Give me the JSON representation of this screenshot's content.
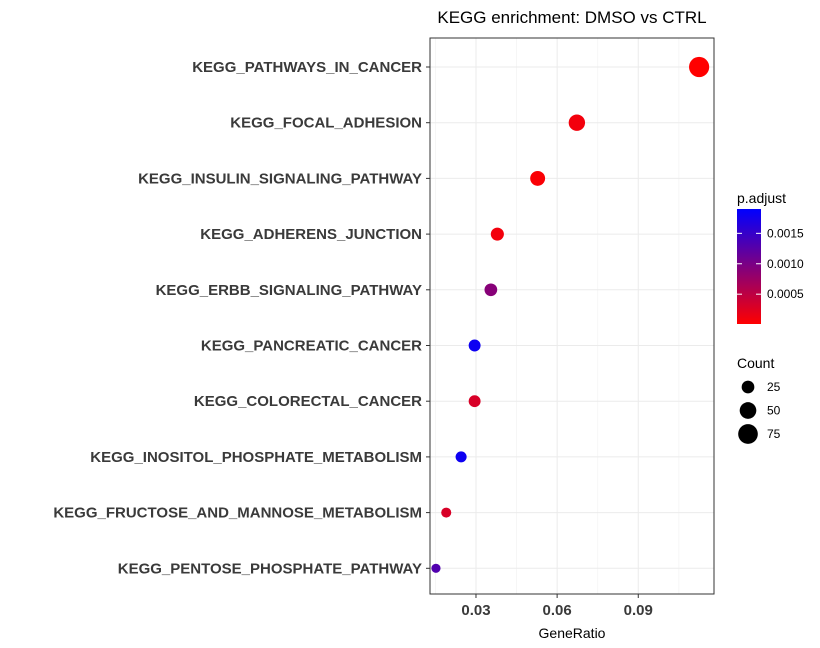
{
  "chart_data": {
    "type": "scatter",
    "title": "KEGG enrichment: DMSO vs CTRL",
    "xlabel": "GeneRatio",
    "ylabel": "",
    "xlim": [
      0.013,
      0.118
    ],
    "xticks": [
      0.03,
      0.06,
      0.09
    ],
    "xtick_labels": [
      "0.03",
      "0.06",
      "0.09"
    ],
    "grid": true,
    "categories": [
      "KEGG_PATHWAYS_IN_CANCER",
      "KEGG_FOCAL_ADHESION",
      "KEGG_INSULIN_SIGNALING_PATHWAY",
      "KEGG_ADHERENS_JUNCTION",
      "KEGG_ERBB_SIGNALING_PATHWAY",
      "KEGG_PANCREATIC_CANCER",
      "KEGG_COLORECTAL_CANCER",
      "KEGG_INOSITOL_PHOSPHATE_METABOLISM",
      "KEGG_FRUCTOSE_AND_MANNOSE_METABOLISM",
      "KEGG_PENTOSE_PHOSPHATE_PATHWAY"
    ],
    "points": [
      {
        "term": "KEGG_PATHWAYS_IN_CANCER",
        "gene_ratio": 0.1125,
        "count": 80,
        "p_adjust": 1e-05
      },
      {
        "term": "KEGG_FOCAL_ADHESION",
        "gene_ratio": 0.0673,
        "count": 48,
        "p_adjust": 0.0001
      },
      {
        "term": "KEGG_INSULIN_SIGNALING_PATHWAY",
        "gene_ratio": 0.0528,
        "count": 38,
        "p_adjust": 5e-05
      },
      {
        "term": "KEGG_ADHERENS_JUNCTION",
        "gene_ratio": 0.0379,
        "count": 27,
        "p_adjust": 0.0001
      },
      {
        "term": "KEGG_ERBB_SIGNALING_PATHWAY",
        "gene_ratio": 0.0355,
        "count": 25,
        "p_adjust": 0.0009
      },
      {
        "term": "KEGG_PANCREATIC_CANCER",
        "gene_ratio": 0.0295,
        "count": 21,
        "p_adjust": 0.0018
      },
      {
        "term": "KEGG_COLORECTAL_CANCER",
        "gene_ratio": 0.0295,
        "count": 21,
        "p_adjust": 0.0003
      },
      {
        "term": "KEGG_INOSITOL_PHOSPHATE_METABOLISM",
        "gene_ratio": 0.0245,
        "count": 17,
        "p_adjust": 0.0018
      },
      {
        "term": "KEGG_FRUCTOSE_AND_MANNOSE_METABOLISM",
        "gene_ratio": 0.019,
        "count": 13,
        "p_adjust": 0.0003
      },
      {
        "term": "KEGG_PENTOSE_PHOSPHATE_PATHWAY",
        "gene_ratio": 0.0152,
        "count": 10,
        "p_adjust": 0.0013
      }
    ],
    "color_legend": {
      "title": "p.adjust",
      "range": [
        1e-05,
        0.0019
      ],
      "ticks": [
        0.0005,
        0.001,
        0.0015
      ],
      "tick_labels": [
        "0.0005",
        "0.0010",
        "0.0015"
      ],
      "low_color": "#ff0000",
      "high_color": "#0000ff",
      "placement": "right"
    },
    "size_legend": {
      "title": "Count",
      "values": [
        25,
        50,
        75
      ],
      "labels": [
        "25",
        "50",
        "75"
      ],
      "placement": "right"
    }
  }
}
